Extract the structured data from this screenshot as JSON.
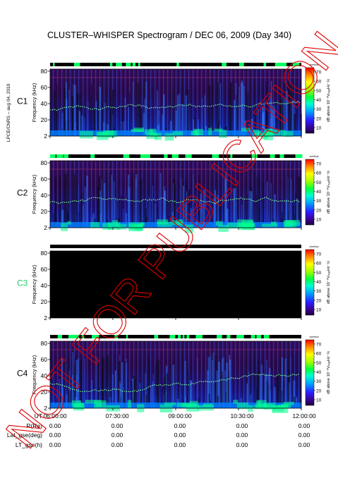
{
  "title": "CLUSTER–WHISPER Spectrogram / DEC 06, 2009 (Day 340)",
  "credit": "LPCE/CNRS – aug 04, 2010",
  "watermark": "NOT FOR PUBLICATION",
  "colors": {
    "c1_label": "#000000",
    "c2_label": "#000000",
    "c3_label": "#22cc66",
    "c4_label": "#000000",
    "no_data": "#000000",
    "watermark": "#dd0000"
  },
  "chart_data": {
    "type": "heatmap",
    "ylabel": "Frequency (kHz)",
    "y_ticks": [
      "2",
      "20",
      "40",
      "60",
      "80"
    ],
    "x_ticks": [
      "06:00:00",
      "07:30:00",
      "09:00:00",
      "10:30:00",
      "12:00:00"
    ],
    "colorbar": {
      "label": "dB above 10⁻⁸VₘₐₓHz⁻½",
      "ticks": [
        "10",
        "20",
        "30",
        "40",
        "50",
        "60",
        "70"
      ],
      "overflow_label": "overflow"
    },
    "panels": [
      {
        "name": "C1",
        "status": "data"
      },
      {
        "name": "C2",
        "status": "data"
      },
      {
        "name": "C3",
        "status": "no-data"
      },
      {
        "name": "C4",
        "status": "data"
      }
    ],
    "footer": {
      "rows": [
        {
          "label": "UT",
          "values": [
            "06:00:00",
            "07:30:00",
            "09:00:00",
            "10:30:00",
            "12:00:00"
          ]
        },
        {
          "label": "R(Re)",
          "values": [
            "0.00",
            "0.00",
            "0.00",
            "0.00",
            "0.00"
          ]
        },
        {
          "label": "Lat_gse(deg)",
          "values": [
            "0.00",
            "0.00",
            "0.00",
            "0.00",
            "0.00"
          ]
        },
        {
          "label": "LT_gse(h)",
          "values": [
            "0.00",
            "0.00",
            "0.00",
            "0.00",
            "0.00"
          ]
        }
      ]
    }
  }
}
